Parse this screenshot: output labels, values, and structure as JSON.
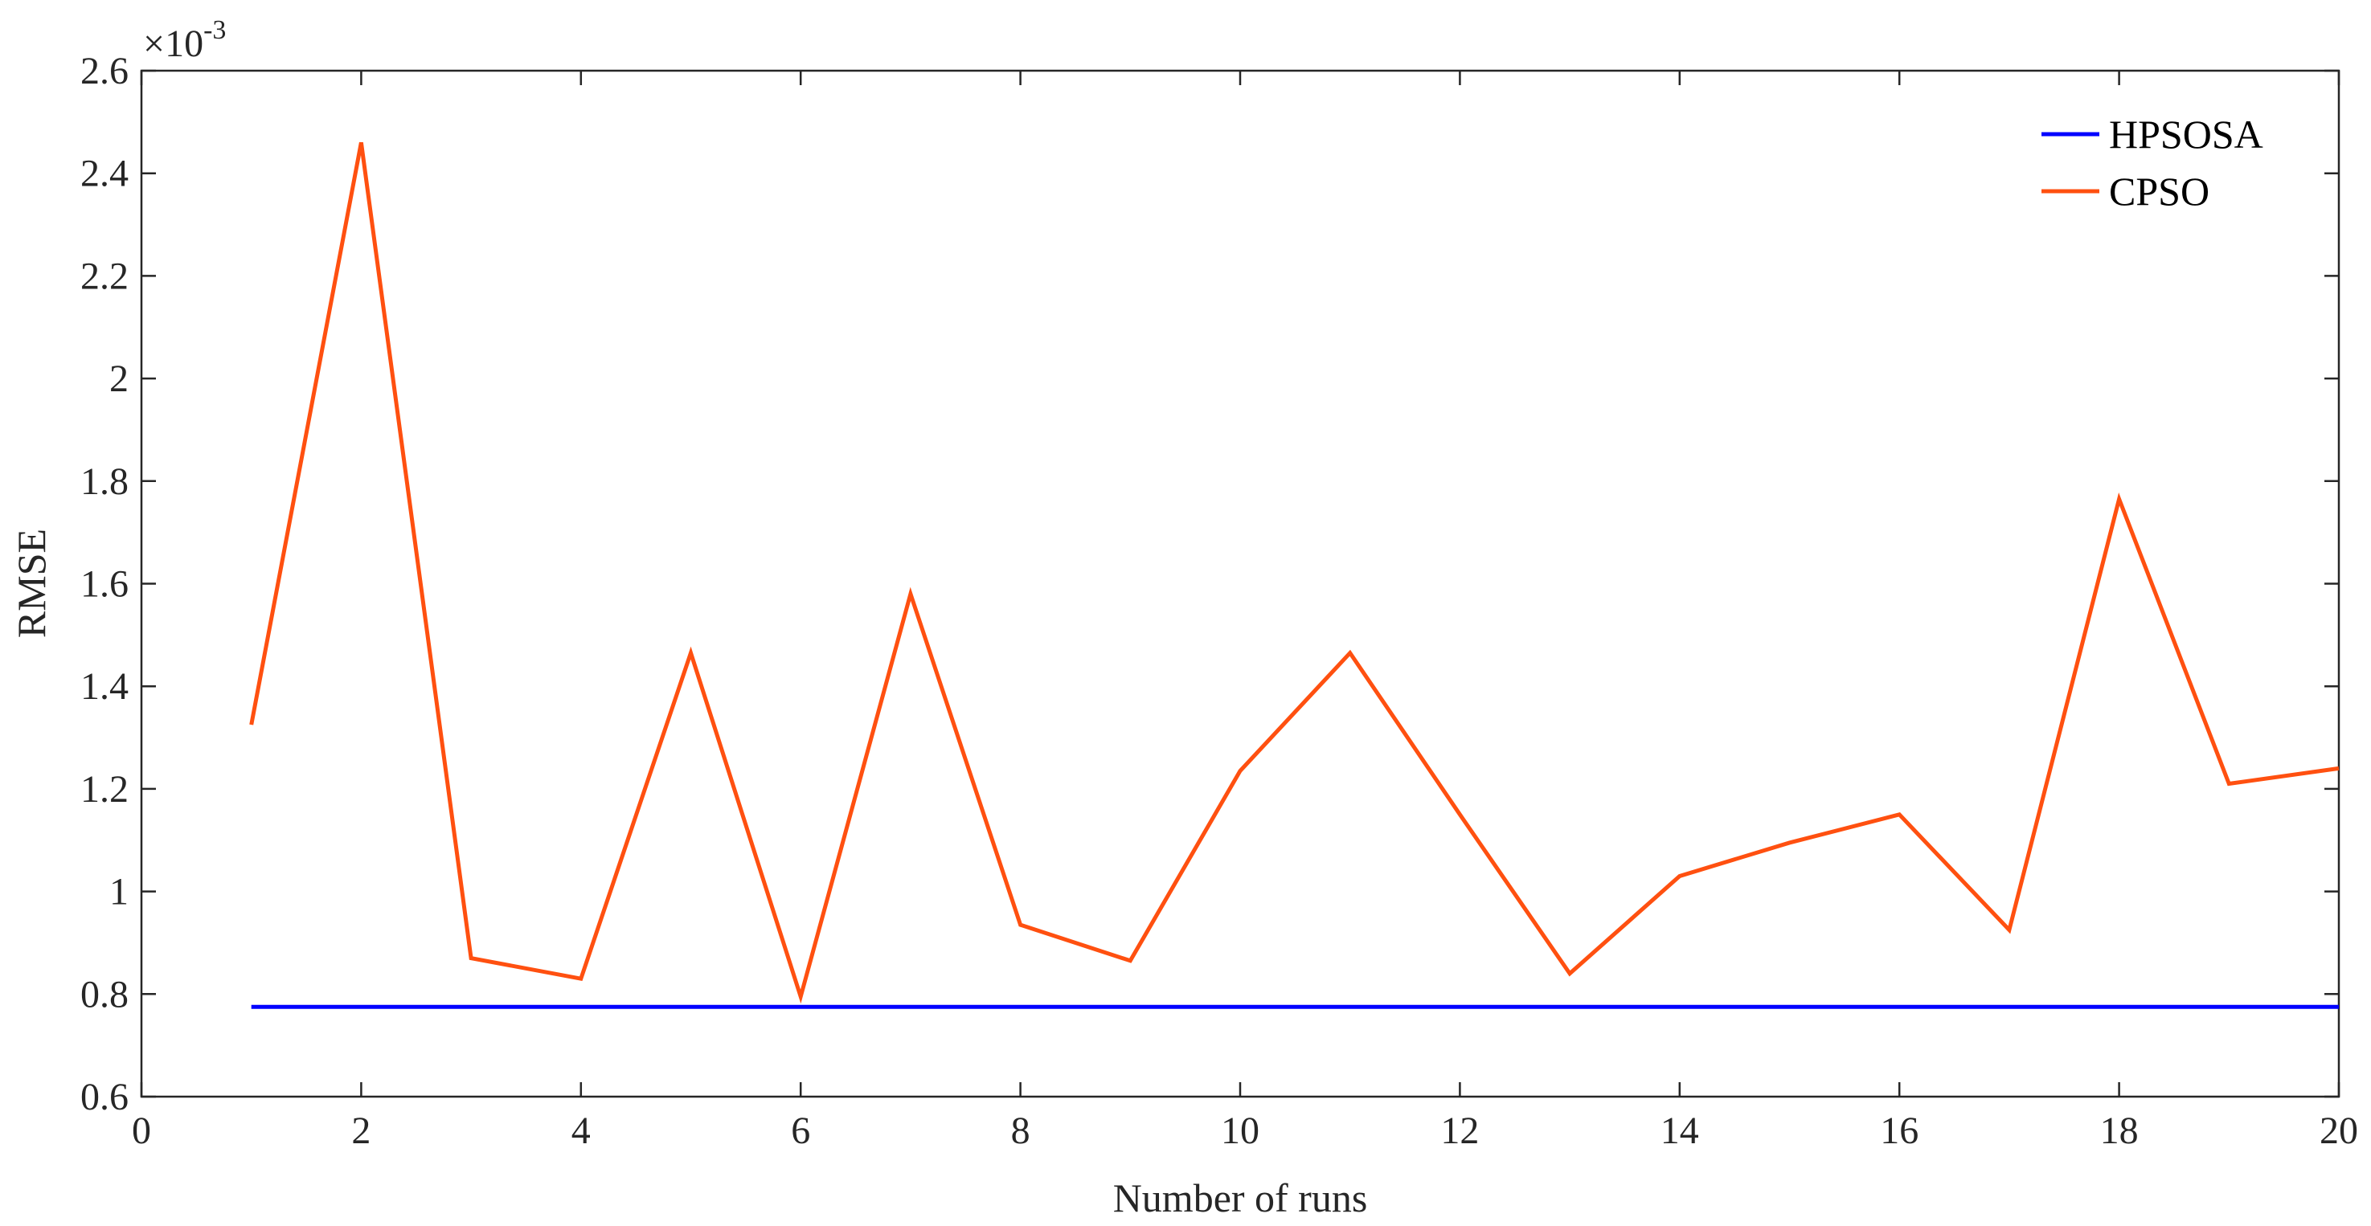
{
  "chart_data": {
    "type": "line",
    "xlabel": "Number of runs",
    "ylabel": "RMSE",
    "xlim": [
      0,
      20
    ],
    "ylim": [
      0.6,
      2.6
    ],
    "y_scale_factor_label": "×10",
    "y_scale_factor_exponent": "-3",
    "xticks": [
      "0",
      "2",
      "4",
      "6",
      "8",
      "10",
      "12",
      "14",
      "16",
      "18",
      "20"
    ],
    "yticks": [
      "0.6",
      "0.8",
      "1",
      "1.2",
      "1.4",
      "1.6",
      "1.8",
      "2",
      "2.2",
      "2.4",
      "2.6"
    ],
    "grid": false,
    "legend_position": "top-right",
    "x": [
      1,
      2,
      3,
      4,
      5,
      6,
      7,
      8,
      9,
      10,
      11,
      12,
      13,
      14,
      15,
      16,
      17,
      18,
      19,
      20
    ],
    "series": [
      {
        "name": "HPSOSA",
        "color": "#0000ff",
        "values": [
          0.775,
          0.775,
          0.775,
          0.775,
          0.775,
          0.775,
          0.775,
          0.775,
          0.775,
          0.775,
          0.775,
          0.775,
          0.775,
          0.775,
          0.775,
          0.775,
          0.775,
          0.775,
          0.775,
          0.775
        ]
      },
      {
        "name": "CPSO",
        "color": "#ff5010",
        "values": [
          1.325,
          2.46,
          0.87,
          0.83,
          1.465,
          0.795,
          1.58,
          0.935,
          0.865,
          1.235,
          1.465,
          1.15,
          0.84,
          1.03,
          1.095,
          1.15,
          0.925,
          1.765,
          1.21,
          1.24
        ]
      }
    ]
  }
}
